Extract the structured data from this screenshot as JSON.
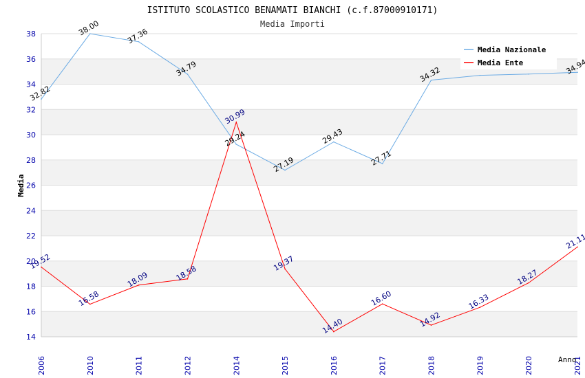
{
  "chart_data": {
    "type": "line",
    "title": "ISTITUTO SCOLASTICO BENAMATI BIANCHI (c.f.87000910171)",
    "subtitle": "Media Importi",
    "xlabel": "Anno",
    "ylabel": "Media",
    "categories": [
      "2006",
      "2010",
      "2011",
      "2012",
      "2014",
      "2015",
      "2016",
      "2017",
      "2018",
      "2019",
      "2020",
      "2021"
    ],
    "ylim": [
      14,
      38
    ],
    "yticks": [
      14,
      16,
      18,
      20,
      22,
      24,
      26,
      28,
      30,
      32,
      34,
      36,
      38
    ],
    "grid": "horizontal-bands",
    "legend_position": "top-right",
    "series": [
      {
        "name": "Media Nazionale",
        "color": "#6aaae4",
        "label_color": "#000000",
        "values": [
          32.82,
          38.0,
          37.36,
          34.79,
          29.24,
          27.19,
          29.43,
          27.71,
          34.32,
          34.7,
          34.8,
          34.94
        ],
        "labels": [
          "32.82",
          "38.00",
          "37.36",
          "34.79",
          "29.24",
          "27.19",
          "29.43",
          "27.71",
          "34.32",
          "",
          "",
          "34.94"
        ]
      },
      {
        "name": "Media Ente",
        "color": "#ff0000",
        "label_color": "#000080",
        "values": [
          19.52,
          16.58,
          18.09,
          18.58,
          30.99,
          19.37,
          14.4,
          16.6,
          14.92,
          16.33,
          18.27,
          21.11
        ],
        "labels": [
          "19.52",
          "16.58",
          "18.09",
          "18.58",
          "30.99",
          "19.37",
          "14.40",
          "16.60",
          "14.92",
          "16.33",
          "18.27",
          "21.11"
        ]
      }
    ]
  },
  "colors": {
    "band": "#f2f2f2",
    "grid_line": "#dddddd",
    "axis_text": "#0000aa",
    "title_text": "#000000",
    "subtitle_text": "#333333"
  }
}
